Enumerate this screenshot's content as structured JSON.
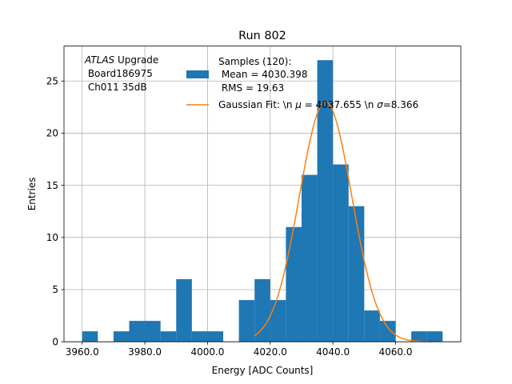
{
  "chart_data": {
    "type": "bar",
    "title": "Run 802",
    "xlabel": "Energy [ADC Counts]",
    "ylabel": "Entries",
    "xlim": [
      3954.2,
      4080.8
    ],
    "ylim": [
      0,
      28.35
    ],
    "grid": true,
    "bin_width": 5,
    "bins": [
      {
        "x0": 3960,
        "count": 1
      },
      {
        "x0": 3965,
        "count": 0
      },
      {
        "x0": 3970,
        "count": 1
      },
      {
        "x0": 3975,
        "count": 2
      },
      {
        "x0": 3980,
        "count": 2
      },
      {
        "x0": 3985,
        "count": 1
      },
      {
        "x0": 3990,
        "count": 6
      },
      {
        "x0": 3995,
        "count": 1
      },
      {
        "x0": 4000,
        "count": 1
      },
      {
        "x0": 4005,
        "count": 0
      },
      {
        "x0": 4010,
        "count": 4
      },
      {
        "x0": 4015,
        "count": 6
      },
      {
        "x0": 4020,
        "count": 4
      },
      {
        "x0": 4025,
        "count": 11
      },
      {
        "x0": 4030,
        "count": 16
      },
      {
        "x0": 4035,
        "count": 27
      },
      {
        "x0": 4040,
        "count": 17
      },
      {
        "x0": 4045,
        "count": 13
      },
      {
        "x0": 4050,
        "count": 3
      },
      {
        "x0": 4055,
        "count": 2
      },
      {
        "x0": 4060,
        "count": 0
      },
      {
        "x0": 4065,
        "count": 1
      },
      {
        "x0": 4070,
        "count": 1
      }
    ],
    "x_ticks": [
      {
        "value": 3960,
        "label": "3960.0"
      },
      {
        "value": 3980,
        "label": "3980.0"
      },
      {
        "value": 4000,
        "label": "4000.0"
      },
      {
        "value": 4020,
        "label": "4020.0"
      },
      {
        "value": 4040,
        "label": "4040.0"
      },
      {
        "value": 4060,
        "label": "4060.0"
      }
    ],
    "y_ticks": [
      {
        "value": 0,
        "label": "0"
      },
      {
        "value": 5,
        "label": "5"
      },
      {
        "value": 10,
        "label": "10"
      },
      {
        "value": 15,
        "label": "15"
      },
      {
        "value": 20,
        "label": "20"
      },
      {
        "value": 25,
        "label": "25"
      }
    ],
    "fit": {
      "mu": 4037.655,
      "sigma": 8.366,
      "x_range": [
        4015,
        4070
      ],
      "peak": 23
    },
    "colors": {
      "hist": "#1f77b4",
      "fit": "#ff7f0e",
      "grid": "#b0b0b0"
    },
    "annotation": {
      "line1_italic": "ATLAS",
      "line1_rest": " Upgrade",
      "line2": " Board186975",
      "line3": " Ch011 35dB"
    },
    "legend": {
      "placement": "top-center",
      "hist_line1": "Samples (120):",
      "hist_line2": " Mean = 4030.398",
      "hist_line3": " RMS = 19.63",
      "fit_prefix": "Gaussian Fit: \\n ",
      "fit_mu_symbol": "μ",
      "fit_mid": " = 4037.655 \\n ",
      "fit_sigma_symbol": "σ",
      "fit_suffix": "=8.366"
    }
  }
}
